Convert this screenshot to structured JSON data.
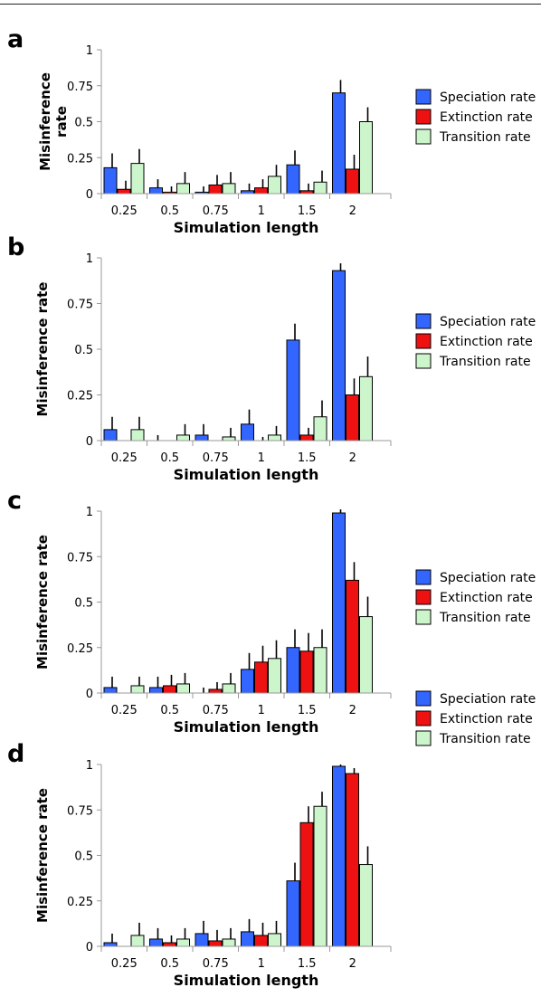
{
  "colors": {
    "speciation": "#3366ff",
    "extinction": "#ee1111",
    "transition": "#ccf5cc",
    "axis": "#999999",
    "text": "#000000"
  },
  "legend_labels": [
    "Speciation rate",
    "Extinction rate",
    "Transition rate"
  ],
  "chart_data": [
    {
      "panel_label": "a",
      "type": "bar",
      "categories": [
        "0.25",
        "0.5",
        "0.75",
        "1",
        "1.5",
        "2"
      ],
      "xlabel": "Simulation length",
      "ylabel": "Misinference rate",
      "ylim": [
        0,
        1
      ],
      "yticks": [
        "0",
        "0.25",
        "0.5",
        "0.75",
        "1"
      ],
      "legend_position": "right",
      "series": [
        {
          "name": "Speciation rate",
          "values": [
            0.18,
            0.04,
            0.01,
            0.02,
            0.2,
            0.7
          ],
          "err": [
            0.1,
            0.06,
            0.04,
            0.05,
            0.1,
            0.09
          ]
        },
        {
          "name": "Extinction rate",
          "values": [
            0.03,
            0.01,
            0.06,
            0.04,
            0.02,
            0.17
          ],
          "err": [
            0.06,
            0.04,
            0.07,
            0.06,
            0.05,
            0.1
          ]
        },
        {
          "name": "Transition rate",
          "values": [
            0.21,
            0.07,
            0.07,
            0.12,
            0.08,
            0.5
          ],
          "err": [
            0.1,
            0.08,
            0.08,
            0.08,
            0.08,
            0.1
          ]
        }
      ]
    },
    {
      "panel_label": "b",
      "type": "bar",
      "categories": [
        "0.25",
        "0.5",
        "0.75",
        "1",
        "1.5",
        "2"
      ],
      "xlabel": "Simulation length",
      "ylabel": "Misinference rate",
      "ylim": [
        0,
        1
      ],
      "yticks": [
        "0",
        "0.25",
        "0.5",
        "0.75",
        "1"
      ],
      "legend_position": "right",
      "series": [
        {
          "name": "Speciation rate",
          "values": [
            0.06,
            0.0,
            0.03,
            0.09,
            0.55,
            0.93
          ],
          "err": [
            0.07,
            0.03,
            0.06,
            0.08,
            0.09,
            0.04
          ]
        },
        {
          "name": "Extinction rate",
          "values": [
            0.0,
            0.0,
            0.0,
            0.0,
            0.03,
            0.25
          ],
          "err": [
            0.0,
            0.0,
            0.0,
            0.02,
            0.04,
            0.09
          ]
        },
        {
          "name": "Transition rate",
          "values": [
            0.06,
            0.03,
            0.02,
            0.03,
            0.13,
            0.35
          ],
          "err": [
            0.07,
            0.06,
            0.05,
            0.05,
            0.09,
            0.11
          ]
        }
      ]
    },
    {
      "panel_label": "c",
      "type": "bar",
      "categories": [
        "0.25",
        "0.5",
        "0.75",
        "1",
        "1.5",
        "2"
      ],
      "xlabel": "Simulation length",
      "ylabel": "Misinference rate",
      "ylim": [
        0,
        1
      ],
      "yticks": [
        "0",
        "0.25",
        "0.5",
        "0.75",
        "1"
      ],
      "legend_position": "right",
      "series": [
        {
          "name": "Speciation rate",
          "values": [
            0.03,
            0.03,
            0.0,
            0.13,
            0.25,
            0.99
          ],
          "err": [
            0.06,
            0.06,
            0.03,
            0.09,
            0.1,
            0.02
          ]
        },
        {
          "name": "Extinction rate",
          "values": [
            0.0,
            0.04,
            0.02,
            0.17,
            0.23,
            0.62
          ],
          "err": [
            0.0,
            0.06,
            0.04,
            0.09,
            0.1,
            0.1
          ]
        },
        {
          "name": "Transition rate",
          "values": [
            0.04,
            0.05,
            0.05,
            0.19,
            0.25,
            0.42
          ],
          "err": [
            0.05,
            0.06,
            0.06,
            0.1,
            0.1,
            0.11
          ]
        }
      ]
    },
    {
      "panel_label": "d",
      "type": "bar",
      "categories": [
        "0.25",
        "0.5",
        "0.75",
        "1",
        "1.5",
        "2"
      ],
      "xlabel": "Simulation length",
      "ylabel": "Misinference rate",
      "ylim": [
        0,
        1
      ],
      "yticks": [
        "0",
        "0.25",
        "0.5",
        "0.75",
        "1"
      ],
      "legend_position": "right",
      "series": [
        {
          "name": "Speciation rate",
          "values": [
            0.02,
            0.04,
            0.07,
            0.08,
            0.36,
            0.99
          ],
          "err": [
            0.05,
            0.06,
            0.07,
            0.07,
            0.1,
            0.01
          ]
        },
        {
          "name": "Extinction rate",
          "values": [
            0.0,
            0.02,
            0.03,
            0.06,
            0.68,
            0.95
          ],
          "err": [
            0.0,
            0.04,
            0.06,
            0.07,
            0.09,
            0.03
          ]
        },
        {
          "name": "Transition rate",
          "values": [
            0.06,
            0.04,
            0.04,
            0.07,
            0.77,
            0.45
          ],
          "err": [
            0.07,
            0.06,
            0.06,
            0.07,
            0.08,
            0.1
          ]
        }
      ]
    }
  ]
}
